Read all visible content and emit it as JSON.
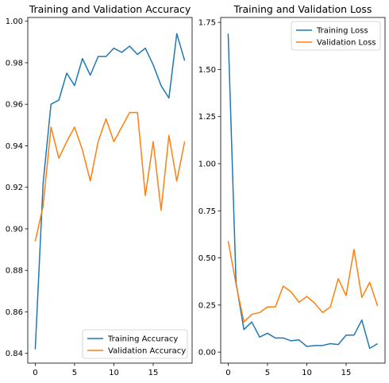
{
  "colors": {
    "training": "#1f77b4",
    "validation": "#ff7f0e"
  },
  "chart_data": [
    {
      "type": "line",
      "title": "Training and Validation Accuracy",
      "xlabel": "",
      "ylabel": "",
      "xlim": [
        -0.95,
        19.95
      ],
      "ylim": [
        0.8353,
        1.0018
      ],
      "xticks": [
        0,
        5,
        10,
        15
      ],
      "yticks": [
        0.84,
        0.86,
        0.88,
        0.9,
        0.92,
        0.94,
        0.96,
        0.98,
        1.0
      ],
      "ytick_labels": [
        "0.84",
        "0.86",
        "0.88",
        "0.90",
        "0.92",
        "0.94",
        "0.96",
        "0.98",
        "1.00"
      ],
      "grid": false,
      "legend_position": "lower right",
      "x": [
        0,
        1,
        2,
        3,
        4,
        5,
        6,
        7,
        8,
        9,
        10,
        11,
        12,
        13,
        14,
        15,
        16,
        17,
        18,
        19
      ],
      "series": [
        {
          "name": "Training Accuracy",
          "color": "#1f77b4",
          "values": [
            0.842,
            0.922,
            0.96,
            0.962,
            0.975,
            0.969,
            0.982,
            0.974,
            0.983,
            0.983,
            0.987,
            0.985,
            0.988,
            0.984,
            0.987,
            0.979,
            0.969,
            0.963,
            0.994,
            0.981
          ]
        },
        {
          "name": "Validation Accuracy",
          "color": "#ff7f0e",
          "values": [
            0.894,
            0.911,
            0.949,
            0.934,
            0.942,
            0.949,
            0.938,
            0.923,
            0.942,
            0.953,
            0.942,
            0.949,
            0.956,
            0.956,
            0.916,
            0.942,
            0.909,
            0.945,
            0.923,
            0.942
          ]
        }
      ]
    },
    {
      "type": "line",
      "title": "Training and Validation Loss",
      "xlabel": "",
      "ylabel": "",
      "xlim": [
        -0.95,
        19.95
      ],
      "ylim": [
        -0.0585,
        1.776
      ],
      "xticks": [
        0,
        5,
        10,
        15
      ],
      "yticks": [
        0.0,
        0.25,
        0.5,
        0.75,
        1.0,
        1.25,
        1.5,
        1.75
      ],
      "ytick_labels": [
        "0.00",
        "0.25",
        "0.50",
        "0.75",
        "1.00",
        "1.25",
        "1.50",
        "1.75"
      ],
      "grid": false,
      "legend_position": "upper right",
      "x": [
        0,
        1,
        2,
        3,
        4,
        5,
        6,
        7,
        8,
        9,
        10,
        11,
        12,
        13,
        14,
        15,
        16,
        17,
        18,
        19
      ],
      "series": [
        {
          "name": "Training Loss",
          "color": "#1f77b4",
          "values": [
            1.69,
            0.37,
            0.12,
            0.16,
            0.08,
            0.1,
            0.075,
            0.075,
            0.06,
            0.065,
            0.03,
            0.035,
            0.035,
            0.045,
            0.04,
            0.09,
            0.09,
            0.17,
            0.02,
            0.045
          ]
        },
        {
          "name": "Validation Loss",
          "color": "#ff7f0e",
          "values": [
            0.59,
            0.36,
            0.16,
            0.2,
            0.21,
            0.24,
            0.24,
            0.35,
            0.32,
            0.265,
            0.295,
            0.26,
            0.21,
            0.24,
            0.39,
            0.3,
            0.545,
            0.29,
            0.37,
            0.245
          ]
        }
      ]
    }
  ]
}
